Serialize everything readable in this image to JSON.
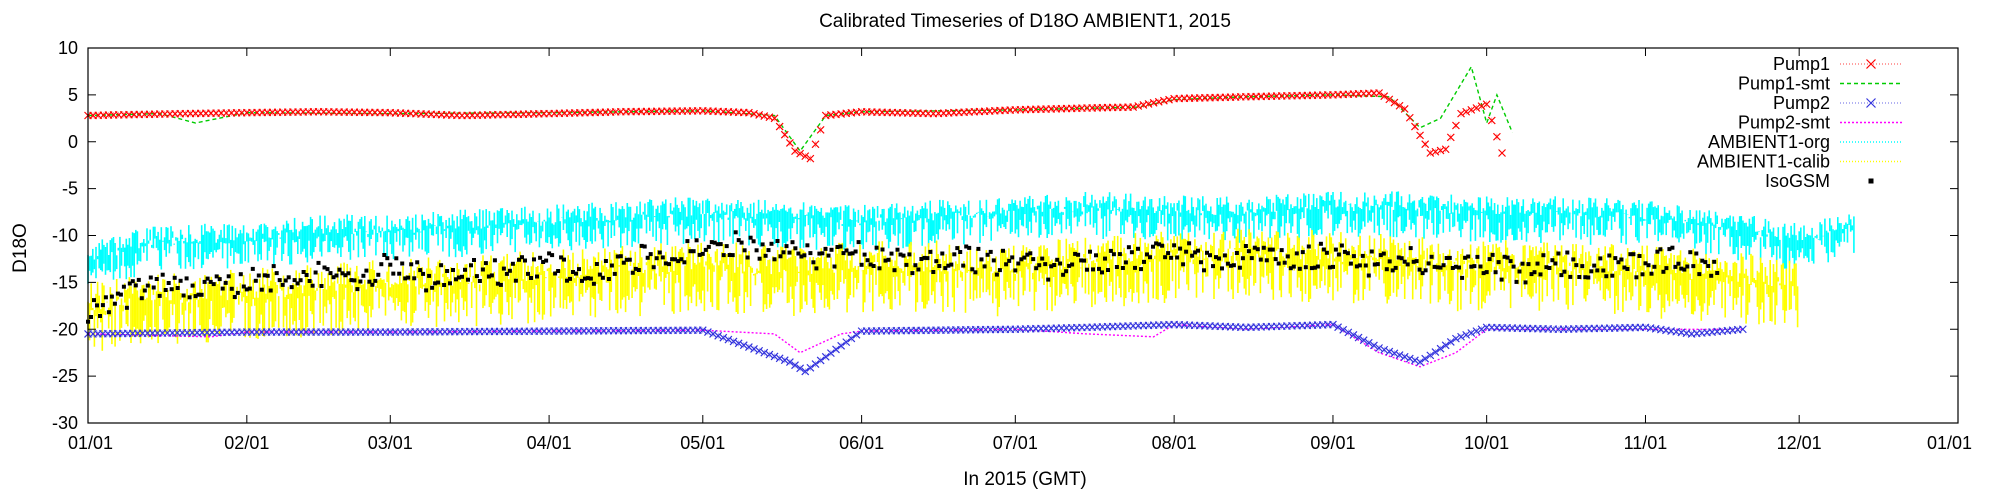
{
  "chart_data": {
    "type": "line",
    "title": "Calibrated Timeseries of D18O AMBIENT1, 2015",
    "xlabel": "In 2015 (GMT)",
    "ylabel": "D18O",
    "ylim": [
      -30,
      10
    ],
    "yticks": [
      10,
      5,
      0,
      -5,
      -10,
      -15,
      -20,
      -25,
      -30
    ],
    "xlim": [
      "2015-01-01",
      "2016-01-01"
    ],
    "xticks": [
      "01/01",
      "02/01",
      "03/01",
      "04/01",
      "05/01",
      "06/01",
      "07/01",
      "08/01",
      "09/01",
      "10/01",
      "11/01",
      "12/01",
      "01/01"
    ],
    "grid": false,
    "legend_position": "top-right",
    "series": [
      {
        "name": "Pump1",
        "color": "#ff0000",
        "marker": "x",
        "style": "points-errorbars",
        "x": [
          "2015-01-01",
          "2015-01-10",
          "2015-01-20",
          "2015-02-01",
          "2015-02-15",
          "2015-03-01",
          "2015-03-15",
          "2015-04-01",
          "2015-04-15",
          "2015-05-01",
          "2015-05-10",
          "2015-05-15",
          "2015-05-19",
          "2015-05-22",
          "2015-05-25",
          "2015-06-01",
          "2015-06-15",
          "2015-07-01",
          "2015-07-15",
          "2015-07-24",
          "2015-08-01",
          "2015-08-15",
          "2015-09-01",
          "2015-09-10",
          "2015-09-15",
          "2015-09-20",
          "2015-09-23",
          "2015-09-26",
          "2015-10-01",
          "2015-10-04"
        ],
        "y": [
          2.8,
          2.9,
          3.0,
          3.1,
          3.2,
          3.1,
          2.8,
          3.0,
          3.2,
          3.3,
          3.1,
          2.5,
          -1.0,
          -1.8,
          2.8,
          3.2,
          3.0,
          3.4,
          3.6,
          3.7,
          4.6,
          4.8,
          5.0,
          5.2,
          3.5,
          -1.2,
          -0.8,
          3.0,
          4.0,
          -1.2
        ]
      },
      {
        "name": "Pump1-smt",
        "color": "#00cc00",
        "style": "dashed-line",
        "x": [
          "2015-01-01",
          "2015-01-15",
          "2015-01-22",
          "2015-02-01",
          "2015-03-01",
          "2015-04-01",
          "2015-05-01",
          "2015-05-15",
          "2015-05-20",
          "2015-05-25",
          "2015-06-01",
          "2015-07-01",
          "2015-07-25",
          "2015-08-01",
          "2015-08-15",
          "2015-09-01",
          "2015-09-12",
          "2015-09-18",
          "2015-09-22",
          "2015-09-28",
          "2015-10-01",
          "2015-10-03",
          "2015-10-06"
        ],
        "y": [
          2.8,
          3.0,
          2.0,
          3.1,
          3.0,
          3.1,
          3.3,
          2.8,
          -1.0,
          2.8,
          3.2,
          3.4,
          3.7,
          4.5,
          4.8,
          5.0,
          4.8,
          1.5,
          2.5,
          8.0,
          2.0,
          5.0,
          1.0
        ]
      },
      {
        "name": "Pump2",
        "color": "#3333dd",
        "marker": "x",
        "style": "points-errorbars",
        "x": [
          "2015-01-01",
          "2015-02-01",
          "2015-03-01",
          "2015-04-01",
          "2015-05-01",
          "2015-05-18",
          "2015-05-21",
          "2015-06-01",
          "2015-07-01",
          "2015-07-15",
          "2015-08-01",
          "2015-08-15",
          "2015-09-01",
          "2015-09-10",
          "2015-09-18",
          "2015-09-25",
          "2015-10-01",
          "2015-10-15",
          "2015-11-01",
          "2015-11-10",
          "2015-11-20"
        ],
        "y": [
          -20.5,
          -20.3,
          -20.3,
          -20.2,
          -20.1,
          -23.5,
          -24.5,
          -20.2,
          -20.0,
          -19.8,
          -19.5,
          -19.8,
          -19.5,
          -22.0,
          -23.5,
          -21.0,
          -19.8,
          -20.0,
          -19.8,
          -20.5,
          -20.0
        ]
      },
      {
        "name": "Pump2-smt",
        "color": "#ff00ff",
        "style": "dotted-line",
        "x": [
          "2015-01-01",
          "2015-01-25",
          "2015-02-01",
          "2015-03-01",
          "2015-04-01",
          "2015-05-01",
          "2015-05-15",
          "2015-05-20",
          "2015-05-28",
          "2015-06-01",
          "2015-07-01",
          "2015-07-15",
          "2015-07-28",
          "2015-08-01",
          "2015-08-15",
          "2015-09-01",
          "2015-09-10",
          "2015-09-18",
          "2015-09-25",
          "2015-10-01",
          "2015-10-15",
          "2015-11-01",
          "2015-11-20"
        ],
        "y": [
          -20.5,
          -20.8,
          -20.3,
          -20.3,
          -20.2,
          -20.1,
          -20.5,
          -22.5,
          -20.5,
          -20.2,
          -20.0,
          -20.5,
          -20.8,
          -19.5,
          -20.0,
          -19.5,
          -22.5,
          -24.0,
          -22.5,
          -20.0,
          -20.0,
          -20.0,
          -20.0
        ]
      },
      {
        "name": "AMBIENT1-org",
        "color": "#00ffff",
        "style": "dense-points",
        "x": [
          "2015-01-01",
          "2015-01-15",
          "2015-02-01",
          "2015-02-15",
          "2015-03-01",
          "2015-03-15",
          "2015-04-01",
          "2015-04-15",
          "2015-05-01",
          "2015-05-15",
          "2015-06-01",
          "2015-06-15",
          "2015-07-01",
          "2015-07-15",
          "2015-08-01",
          "2015-08-15",
          "2015-09-01",
          "2015-09-15",
          "2015-10-01",
          "2015-10-15",
          "2015-11-01",
          "2015-11-15",
          "2015-12-01",
          "2015-12-12"
        ],
        "y": [
          -14.0,
          -12.0,
          -12.0,
          -11.0,
          -11.0,
          -10.5,
          -10.0,
          -9.5,
          -9.0,
          -9.5,
          -10.0,
          -9.5,
          -9.0,
          -8.5,
          -9.0,
          -9.0,
          -8.5,
          -8.5,
          -9.0,
          -9.0,
          -9.5,
          -10.5,
          -12.0,
          -10.5
        ]
      },
      {
        "name": "AMBIENT1-calib",
        "color": "#ffff00",
        "style": "dense-points",
        "x": [
          "2015-01-01",
          "2015-01-15",
          "2015-02-01",
          "2015-02-15",
          "2015-03-01",
          "2015-03-15",
          "2015-04-01",
          "2015-04-15",
          "2015-05-01",
          "2015-05-15",
          "2015-06-01",
          "2015-06-15",
          "2015-07-01",
          "2015-07-15",
          "2015-08-01",
          "2015-08-15",
          "2015-09-01",
          "2015-09-15",
          "2015-10-01",
          "2015-10-15",
          "2015-11-01",
          "2015-11-15",
          "2015-12-01"
        ],
        "y": [
          -20.0,
          -19.0,
          -18.5,
          -18.0,
          -17.5,
          -17.0,
          -16.5,
          -16.0,
          -15.5,
          -16.0,
          -15.5,
          -15.5,
          -16.0,
          -15.0,
          -14.5,
          -14.0,
          -14.5,
          -15.0,
          -15.5,
          -15.5,
          -16.0,
          -16.5,
          -17.5
        ]
      },
      {
        "name": "IsoGSM",
        "color": "#000000",
        "marker": "square",
        "style": "points",
        "x": [
          "2015-01-01",
          "2015-01-08",
          "2015-01-15",
          "2015-01-22",
          "2015-02-01",
          "2015-02-08",
          "2015-02-15",
          "2015-02-22",
          "2015-03-01",
          "2015-03-08",
          "2015-03-15",
          "2015-03-22",
          "2015-04-01",
          "2015-04-08",
          "2015-04-15",
          "2015-04-22",
          "2015-05-01",
          "2015-05-08",
          "2015-05-15",
          "2015-05-22",
          "2015-06-01",
          "2015-06-08",
          "2015-06-15",
          "2015-06-22",
          "2015-07-01",
          "2015-07-08",
          "2015-07-15",
          "2015-07-22",
          "2015-08-01",
          "2015-08-08",
          "2015-08-15",
          "2015-08-22",
          "2015-09-01",
          "2015-09-08",
          "2015-09-15",
          "2015-09-22",
          "2015-10-01",
          "2015-10-08",
          "2015-10-15",
          "2015-10-22",
          "2015-11-01",
          "2015-11-08",
          "2015-11-15"
        ],
        "y": [
          -18.0,
          -16.5,
          -15.5,
          -16.0,
          -15.0,
          -14.5,
          -14.0,
          -15.0,
          -13.0,
          -14.5,
          -13.5,
          -14.0,
          -13.0,
          -14.5,
          -13.0,
          -12.0,
          -11.5,
          -11.0,
          -11.5,
          -12.5,
          -12.0,
          -12.5,
          -13.0,
          -12.5,
          -13.0,
          -13.5,
          -13.0,
          -12.5,
          -12.0,
          -12.5,
          -12.0,
          -12.5,
          -12.0,
          -13.0,
          -12.5,
          -13.5,
          -13.0,
          -14.0,
          -13.0,
          -13.5,
          -13.0,
          -12.5,
          -14.0
        ]
      }
    ]
  }
}
